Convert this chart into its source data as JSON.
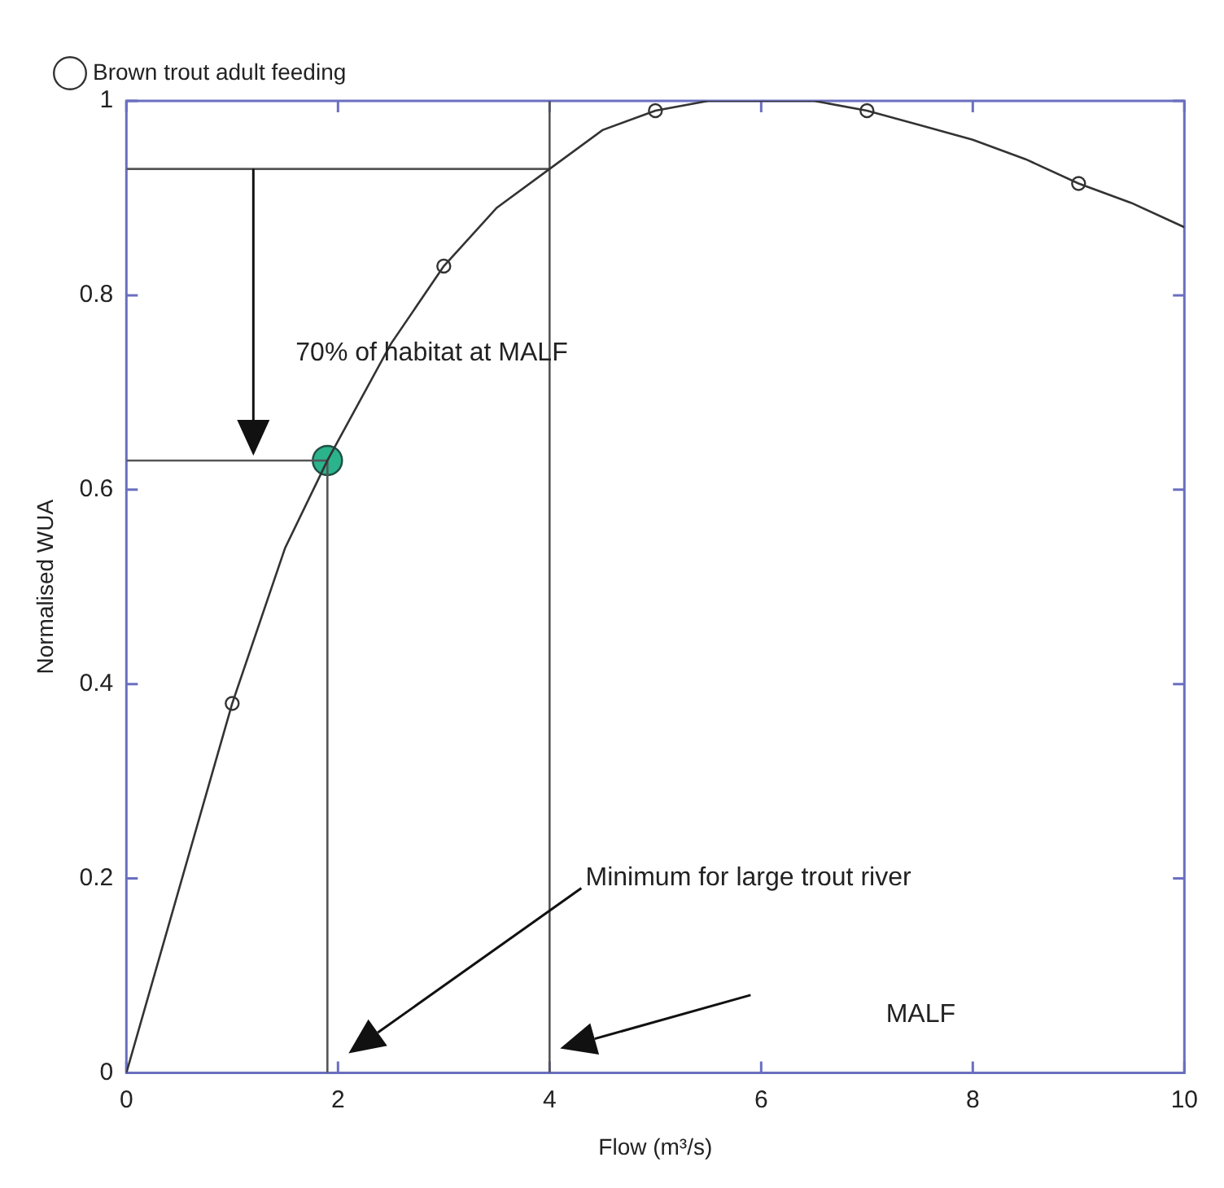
{
  "chart_data": {
    "type": "line",
    "xlabel": "Flow (m³/s)",
    "ylabel": "Normalised WUA",
    "xlim": [
      0,
      10
    ],
    "xticks": [
      0,
      2,
      4,
      6,
      8,
      10
    ],
    "ylim": [
      0,
      1
    ],
    "yticks": [
      0,
      0.2,
      0.4,
      0.6,
      0.8,
      1
    ],
    "grid": false,
    "legend": "top left",
    "series": [
      {
        "color": "#333333",
        "marker": "none",
        "x": [
          0,
          0.5,
          1,
          1.5,
          1.9,
          2.5,
          3,
          3.5,
          4,
          4.5,
          5,
          5.5,
          6,
          6.5,
          7,
          7.5,
          8,
          8.5,
          9,
          9.5,
          10
        ],
        "values": [
          0,
          0.19,
          0.38,
          0.54,
          0.63,
          0.75,
          0.83,
          0.89,
          0.93,
          0.97,
          0.99,
          1.0,
          1.0,
          1.0,
          0.99,
          0.975,
          0.96,
          0.94,
          0.915,
          0.895,
          0.87
        ]
      },
      {
        "type": "scatter",
        "name": "Brown trout adult feeding",
        "color": "#333333",
        "marker": "circle",
        "x": [
          1,
          3,
          5,
          7,
          9
        ],
        "values": [
          0.38,
          0.83,
          0.99,
          0.99,
          0.915
        ]
      },
      {
        "type": "line",
        "color": "#555555",
        "marker": "none",
        "x": [
          4,
          4
        ],
        "values": [
          0,
          1
        ]
      },
      {
        "type": "line",
        "color": "#555555",
        "marker": "none",
        "x": [
          0,
          4
        ],
        "values": [
          0.93,
          0.93
        ]
      },
      {
        "type": "line",
        "color": "#555555",
        "marker": "none",
        "x": [
          0,
          1.9,
          1.9
        ],
        "values": [
          0.63,
          0.63,
          0
        ]
      },
      {
        "type": "scatter",
        "color": "#2bb38c",
        "marker": "circle",
        "x": [
          1.9
        ],
        "values": [
          0.63
        ]
      }
    ],
    "annotations": [
      "70% of habitat at MALF",
      "Minimum for large trout river",
      "MALF"
    ]
  }
}
